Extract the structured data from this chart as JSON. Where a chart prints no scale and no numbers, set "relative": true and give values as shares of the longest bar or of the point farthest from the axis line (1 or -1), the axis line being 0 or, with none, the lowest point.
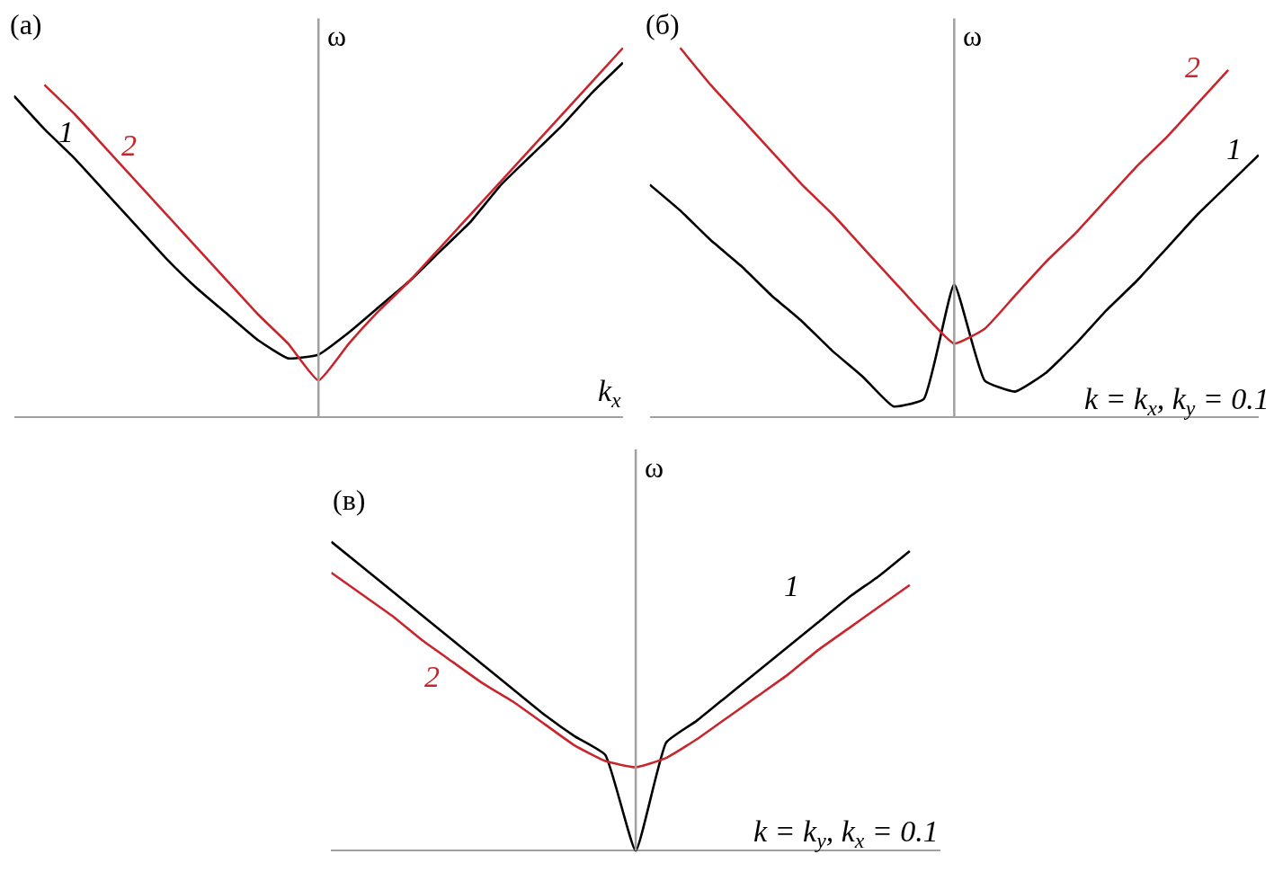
{
  "chart_data": [
    {
      "type": "line",
      "relative": true,
      "title": "(а)",
      "ylabel": "ω",
      "xlabel": "k$_{x}$",
      "categories": [
        null,
        null,
        null,
        null,
        null,
        null,
        null,
        null,
        null,
        null,
        null,
        null,
        null,
        null,
        null,
        null,
        null,
        null,
        null,
        null,
        null
      ],
      "series": [
        {
          "name": "1",
          "color": "#000000",
          "values": [
            0.87,
            0.78,
            0.7,
            0.61,
            0.52,
            0.43,
            0.35,
            0.28,
            0.21,
            0.16,
            0.17,
            0.23,
            0.3,
            0.37,
            0.45,
            0.53,
            0.63,
            0.71,
            0.79,
            0.88,
            0.96
          ]
        },
        {
          "name": "2",
          "color": "#c8262c",
          "values": [
            null,
            0.9,
            0.82,
            0.73,
            0.64,
            0.55,
            0.46,
            0.37,
            0.28,
            0.2,
            0.1,
            0.2,
            0.29,
            0.37,
            0.46,
            0.55,
            0.64,
            0.73,
            0.82,
            0.91,
            1.0
          ]
        }
      ]
    },
    {
      "type": "line",
      "relative": true,
      "title": "(б)",
      "ylabel": "ω",
      "annotations": [
        "k = k$_{x}$, k$_{y}$ = 0.1"
      ],
      "categories": [
        null,
        null,
        null,
        null,
        null,
        null,
        null,
        null,
        null,
        null,
        null,
        null,
        null,
        null,
        null,
        null,
        null,
        null,
        null,
        null,
        null
      ],
      "series": [
        {
          "name": "1",
          "color": "#000000",
          "values": [
            0.63,
            0.56,
            0.48,
            0.41,
            0.33,
            0.26,
            0.18,
            0.11,
            0.03,
            0.05,
            0.36,
            0.1,
            0.07,
            0.12,
            0.2,
            0.29,
            0.37,
            0.46,
            0.55,
            0.63,
            0.71
          ]
        },
        {
          "name": "2",
          "color": "#c8262c",
          "values": [
            null,
            1.0,
            0.9,
            0.81,
            0.72,
            0.63,
            0.55,
            0.46,
            0.37,
            0.28,
            0.2,
            0.24,
            0.33,
            0.42,
            0.5,
            0.59,
            0.68,
            0.76,
            0.85,
            0.94,
            null
          ]
        }
      ]
    },
    {
      "type": "line",
      "relative": true,
      "title": "(в)",
      "ylabel": "ω",
      "annotations": [
        "k = k$_{y}$, k$_{x}$ = 0.1"
      ],
      "categories": [
        null,
        null,
        null,
        null,
        null,
        null,
        null,
        null,
        null,
        null,
        null,
        null,
        null,
        null,
        null,
        null,
        null,
        null,
        null,
        null,
        null
      ],
      "series": [
        {
          "name": "1",
          "color": "#000000",
          "values": [
            1.0,
            0.92,
            0.84,
            0.76,
            0.68,
            0.6,
            0.52,
            0.44,
            0.37,
            0.31,
            0.0,
            0.35,
            0.42,
            0.5,
            0.58,
            0.66,
            0.74,
            0.82,
            0.89,
            0.97,
            null
          ]
        },
        {
          "name": "2",
          "color": "#c8262c",
          "values": [
            0.9,
            0.83,
            0.76,
            0.68,
            0.61,
            0.54,
            0.48,
            0.41,
            0.34,
            0.29,
            0.27,
            0.3,
            0.36,
            0.43,
            0.5,
            0.57,
            0.65,
            0.72,
            0.79,
            0.86,
            null
          ]
        }
      ]
    }
  ]
}
